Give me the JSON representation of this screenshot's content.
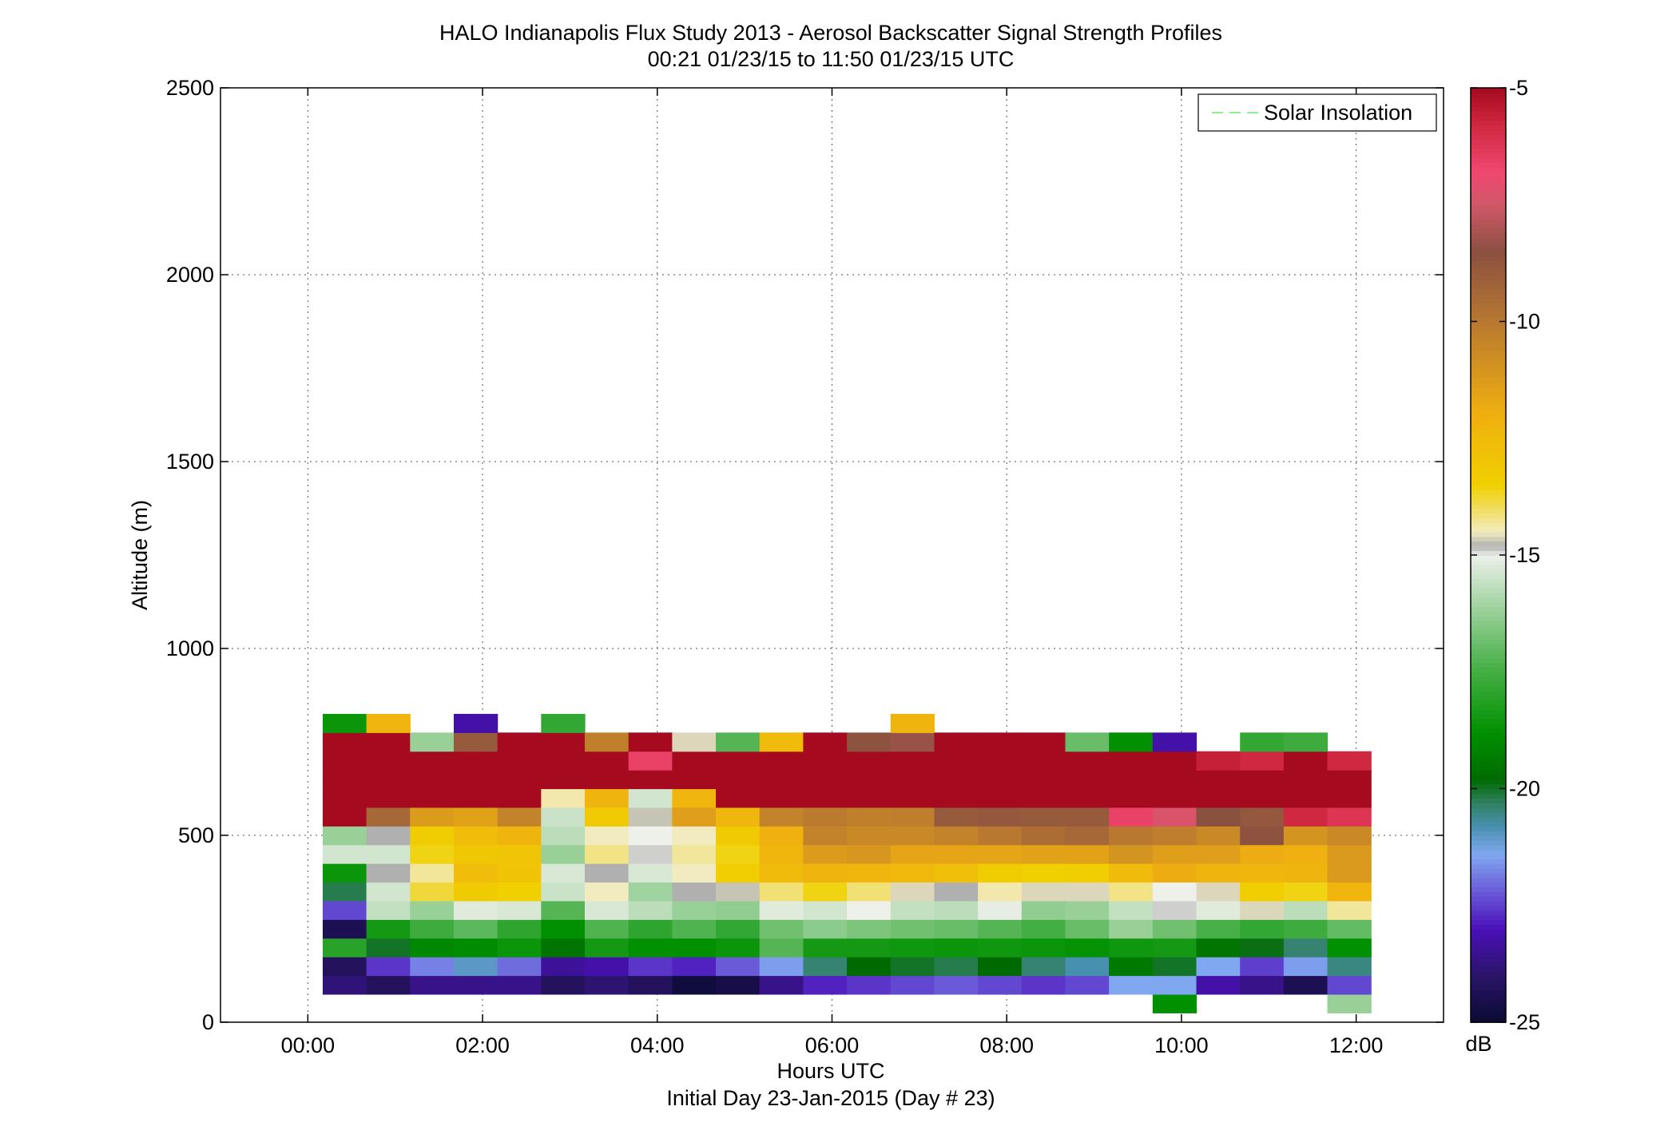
{
  "chart_data": {
    "type": "heatmap",
    "title": "HALO Indianapolis Flux Study 2013 - Aerosol Backscatter Signal Strength Profiles",
    "subtitle": "00:21 01/23/15 to 11:50 01/23/15  UTC",
    "xlabel": "Hours UTC",
    "xlabel2": "Initial Day 23-Jan-2015 (Day # 23)",
    "ylabel": "Altitude (m)",
    "xlim": [
      -1.0,
      13.0
    ],
    "ylim": [
      0,
      2500
    ],
    "x_ticks": [
      {
        "value": 0,
        "label": "00:00"
      },
      {
        "value": 2,
        "label": "02:00"
      },
      {
        "value": 4,
        "label": "04:00"
      },
      {
        "value": 6,
        "label": "06:00"
      },
      {
        "value": 8,
        "label": "08:00"
      },
      {
        "value": 10,
        "label": "10:00"
      },
      {
        "value": 12,
        "label": "12:00"
      }
    ],
    "y_ticks": [
      {
        "value": 0,
        "label": "0"
      },
      {
        "value": 500,
        "label": "500"
      },
      {
        "value": 1000,
        "label": "1000"
      },
      {
        "value": 1500,
        "label": "1500"
      },
      {
        "value": 2000,
        "label": "2000"
      },
      {
        "value": 2500,
        "label": "2500"
      }
    ],
    "grid": true,
    "legend": {
      "position": "top-right",
      "entries": [
        {
          "label": "Solar Insolation",
          "color": "#90ee90",
          "style": "dashed"
        }
      ]
    },
    "colorbar": {
      "label": "dB",
      "range": [
        -25,
        -5
      ],
      "ticks": [
        {
          "value": -5,
          "label": "-5"
        },
        {
          "value": -10,
          "label": "-10"
        },
        {
          "value": -15,
          "label": "-15"
        },
        {
          "value": -20,
          "label": "-20"
        },
        {
          "value": -25,
          "label": "-25"
        }
      ],
      "colormap": [
        [
          -25,
          "#0a0a32"
        ],
        [
          -24,
          "#2a1468"
        ],
        [
          -23,
          "#4a10b8"
        ],
        [
          -22.2,
          "#6a5ad8"
        ],
        [
          -21.4,
          "#80a8f0"
        ],
        [
          -20.8,
          "#4890b0"
        ],
        [
          -20.3,
          "#308060"
        ],
        [
          -19.8,
          "#006a00"
        ],
        [
          -18.8,
          "#009000"
        ],
        [
          -17.4,
          "#48b048"
        ],
        [
          -16.2,
          "#98d098"
        ],
        [
          -15,
          "#eef0ea"
        ],
        [
          -14.8,
          "#b0b0b0"
        ],
        [
          -14.5,
          "#f2ebc0"
        ],
        [
          -13.5,
          "#f0d000"
        ],
        [
          -12,
          "#f0b010"
        ],
        [
          -10,
          "#b87830"
        ],
        [
          -8.5,
          "#8a5040"
        ],
        [
          -7.5,
          "#d05868"
        ],
        [
          -6.8,
          "#f04870"
        ],
        [
          -5.8,
          "#d02840"
        ],
        [
          -5,
          "#a50a1e"
        ]
      ]
    },
    "time_bins": [
      0.42,
      0.92,
      1.42,
      1.92,
      2.42,
      2.92,
      3.42,
      3.92,
      4.42,
      4.92,
      5.42,
      5.92,
      6.42,
      6.92,
      7.42,
      7.92,
      8.42,
      8.92,
      9.42,
      9.92,
      10.42,
      10.92,
      11.42,
      11.92
    ],
    "altitude_bins": [
      50,
      100,
      150,
      200,
      250,
      300,
      350,
      400,
      450,
      500,
      550,
      600,
      650,
      700,
      750,
      800
    ],
    "bin_height_m": 50,
    "values_db": [
      [
        null,
        -23.8,
        -24.2,
        -18,
        -24.4,
        -22.4,
        -20.2,
        -18.6,
        -15.4,
        -16.2,
        -5,
        -5,
        -5,
        -5,
        -5,
        -18.6
      ],
      [
        null,
        -24.2,
        -22.6,
        -20,
        -18.4,
        -15.6,
        -15.4,
        -14.8,
        -15.4,
        -14.8,
        -9.4,
        -5,
        -5,
        -5,
        -5,
        -12.3
      ],
      [
        null,
        -23.6,
        -21.8,
        -19,
        -17.6,
        -16.2,
        -13.8,
        -14.3,
        -13.6,
        -13.3,
        -11.3,
        -5,
        -5,
        -5,
        -16.2,
        null
      ],
      [
        null,
        -23.6,
        -21,
        -18.9,
        -17.1,
        -15.2,
        -13.2,
        -12.6,
        -13.1,
        -12.6,
        -11.5,
        -5,
        -5,
        -5,
        -8.9,
        -23.2
      ],
      [
        null,
        -23.6,
        -22,
        -18.6,
        -17.9,
        -15.3,
        -13.5,
        -12.9,
        -13,
        -12.2,
        -10.4,
        -5,
        -5,
        -5,
        -5,
        null
      ],
      [
        null,
        -24.2,
        -23.4,
        -19.5,
        -18.8,
        -17.2,
        -15.5,
        -15.3,
        -16.2,
        -15.7,
        -15.5,
        -14.4,
        -5,
        -5,
        -5,
        -17.8
      ],
      [
        null,
        -23.9,
        -23.2,
        -18.4,
        -17.3,
        -15.3,
        -14.5,
        -14.8,
        -14.2,
        -14.5,
        -13.2,
        -12.2,
        -5,
        -5,
        -10.3,
        null
      ],
      [
        null,
        -24.2,
        -22.6,
        -18.8,
        -17.9,
        -15.7,
        -16.1,
        -15.3,
        -14.9,
        -15,
        -14.7,
        -15.4,
        -5,
        -6.6,
        -5,
        null
      ],
      [
        null,
        -24.8,
        -22.8,
        -18.8,
        -17.3,
        -16.2,
        -14.8,
        -14.5,
        -14.3,
        -14.5,
        -11.4,
        -12.3,
        -5,
        -5,
        -14.6,
        null
      ],
      [
        null,
        -24.6,
        -22.2,
        -18.6,
        -17.8,
        -16.3,
        -14.7,
        -13.4,
        -13.6,
        -13.2,
        -12.3,
        -5,
        -5,
        -5,
        -17.2,
        null
      ],
      [
        null,
        -23.6,
        -21.5,
        -17.2,
        -16.8,
        -15.2,
        -14.1,
        -12.5,
        -12.3,
        -12,
        -10.4,
        -5,
        -5,
        -5,
        -12.5,
        null
      ],
      [
        null,
        -22.8,
        -20.4,
        -18.4,
        -16.4,
        -15.4,
        -13.6,
        -12.2,
        -11.3,
        -10.4,
        -10.1,
        -5,
        -5,
        -5,
        -5,
        null
      ],
      [
        null,
        -22.6,
        -19.8,
        -18.4,
        -16.6,
        -15,
        -14.1,
        -12.3,
        -11.1,
        -10.6,
        -10.3,
        -5,
        -5,
        -5,
        -8.6,
        null
      ],
      [
        null,
        -22.4,
        -20,
        -18.5,
        -16.8,
        -15.6,
        -14.6,
        -12.4,
        -11.6,
        -10.6,
        -10.2,
        -5,
        -5,
        -5,
        -8.3,
        -12.2
      ],
      [
        null,
        -22.2,
        -20.2,
        -18.6,
        -16.9,
        -15.7,
        -14.8,
        -12.7,
        -11.6,
        -10.4,
        -8.9,
        -5,
        -5,
        -5,
        -5,
        null
      ],
      [
        null,
        -22.4,
        -19.8,
        -18.5,
        -17.2,
        -15.1,
        -14.4,
        -13.3,
        -11.6,
        -10,
        -8.8,
        -5,
        -5,
        -5,
        -5,
        null
      ],
      [
        null,
        -22.6,
        -20.4,
        -18.6,
        -17.5,
        -16.3,
        -14.6,
        -13.5,
        -11.5,
        -9.6,
        -8.9,
        -5,
        -5,
        -5,
        -5,
        null
      ],
      [
        null,
        -22.4,
        -20.8,
        -18.7,
        -16.9,
        -16.2,
        -14.6,
        -13.4,
        -11.5,
        -9.4,
        -8.9,
        -5,
        -5,
        -5,
        -16.9,
        null
      ],
      [
        null,
        -21.4,
        -19.4,
        -18.5,
        -16.2,
        -15.6,
        -14.2,
        -12.5,
        -11,
        -10,
        -6.6,
        -5,
        -5,
        -5,
        -18.8,
        null
      ],
      [
        -18.8,
        -21.4,
        -20,
        -18.4,
        -16.8,
        -14.9,
        -15,
        -11.9,
        -11.4,
        -10.2,
        -7.3,
        -5,
        -5,
        -5,
        -23.2,
        null
      ],
      [
        null,
        -23.2,
        -21.4,
        -19.5,
        -17.4,
        -15.2,
        -14.6,
        -12.2,
        -11.4,
        -10.6,
        -8.5,
        -5,
        -5,
        -5.6,
        null,
        null
      ],
      [
        null,
        -23.6,
        -22.5,
        -19.9,
        -17.8,
        -14.6,
        -13.4,
        -12.3,
        -11.9,
        -8.6,
        -8.8,
        -5,
        -5,
        -5.8,
        -17.8,
        null
      ],
      [
        null,
        -24.4,
        -21.5,
        -20.4,
        -17.6,
        -15.7,
        -13.6,
        -12.2,
        -12,
        -11,
        -5.8,
        -5,
        -5,
        -5,
        -17.6,
        null
      ],
      [
        -16.2,
        -22.4,
        -20.5,
        -18.8,
        -17,
        -14.3,
        -12.3,
        -11.2,
        -11.2,
        -10.6,
        -6.2,
        -5,
        -5,
        -5.8,
        null,
        null
      ]
    ]
  }
}
